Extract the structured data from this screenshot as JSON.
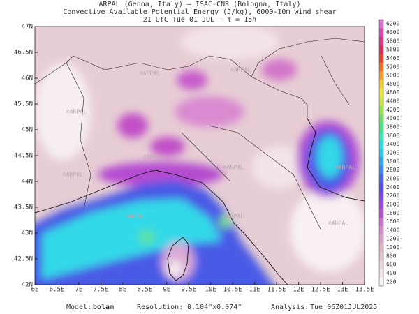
{
  "header": {
    "line1": "ARPAL (Genoa, Italy)  –  ISAC-CNR (Bologna, Italy)",
    "line2": "Convective Available Potential Energy (J/kg), 6000-10m wind shear",
    "line3": "21 UTC Tue 01 JUL  –  τ = 15h"
  },
  "map": {
    "lat_labels": [
      "47N",
      "46.5N",
      "46N",
      "45.5N",
      "45N",
      "44.5N",
      "44N",
      "43.5N",
      "43N",
      "42.5N",
      "42N"
    ],
    "lon_labels": [
      "6E",
      "6.5E",
      "7E",
      "7.5E",
      "8E",
      "8.5E",
      "9E",
      "9.5E",
      "10E",
      "10.5E",
      "11E",
      "11.5E",
      "12E",
      "12.5E",
      "13E",
      "13.5E"
    ],
    "watermark": "©ARPAL"
  },
  "colorbar": {
    "ticks": [
      200,
      400,
      600,
      800,
      1000,
      1200,
      1400,
      1600,
      1800,
      2000,
      2200,
      2400,
      2600,
      2800,
      3000,
      3200,
      3400,
      3600,
      3800,
      4000,
      4200,
      4400,
      4600,
      4800,
      5000,
      5200,
      5400,
      5600,
      5800,
      6000,
      6200
    ]
  },
  "footer": {
    "model_label": "Model:",
    "model": "bolam",
    "resolution_label": "Resolution:",
    "resolution": "0.104°x0.074°",
    "analysis_label": "Analysis:",
    "analysis": "Tue 06Z01JUL2025"
  }
}
